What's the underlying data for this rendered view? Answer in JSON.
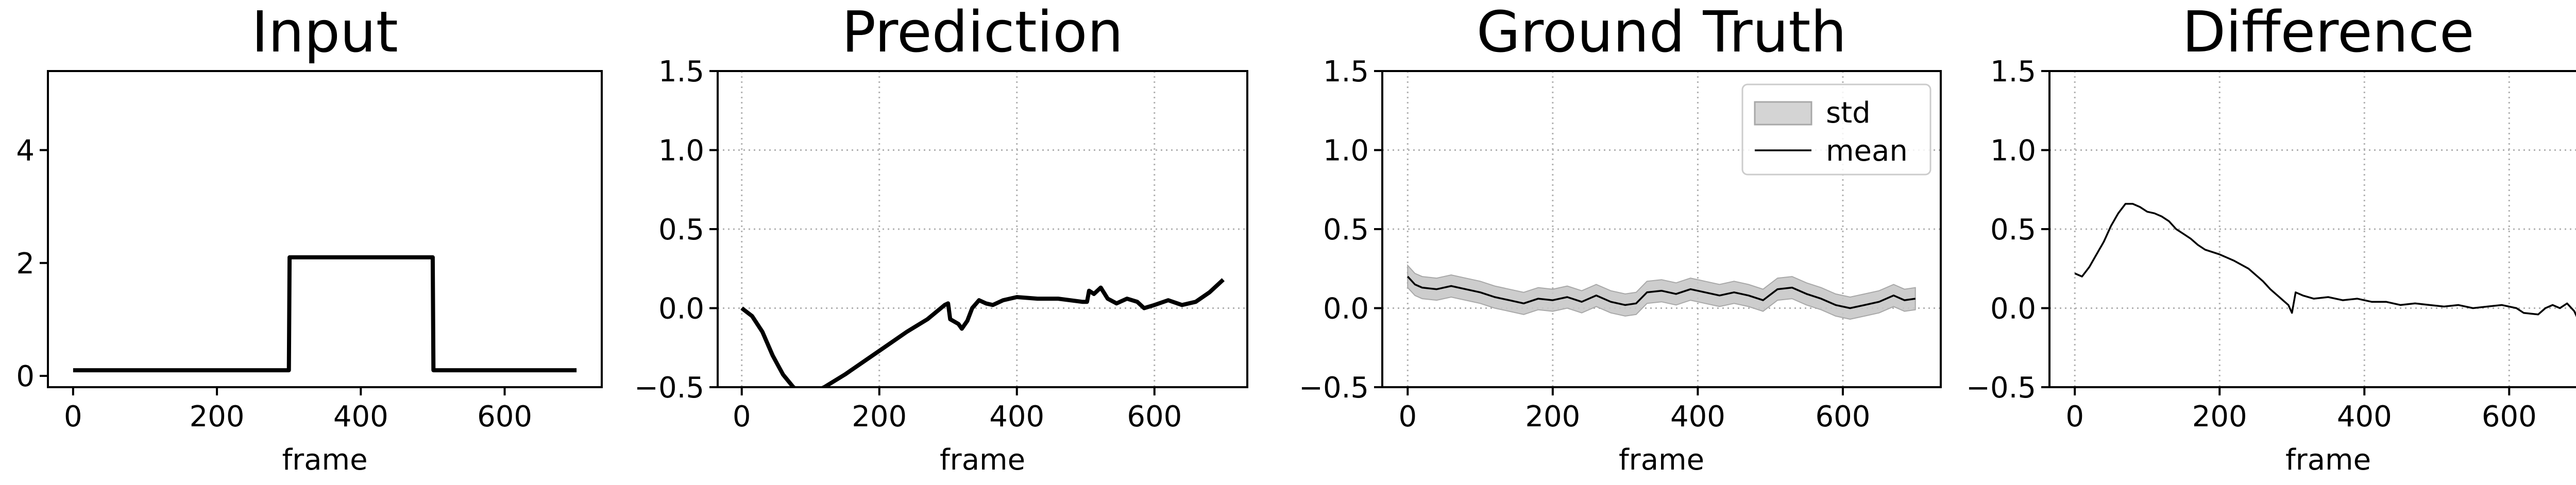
{
  "chart_data": [
    {
      "type": "line",
      "title": "Input",
      "xlabel": "frame",
      "ylabel": "",
      "xlim": [
        -35,
        735
      ],
      "ylim": [
        -0.2,
        5.4
      ],
      "xticks": [
        0,
        200,
        400,
        600
      ],
      "yticks": [
        0,
        2,
        4
      ],
      "x_tick_labels": [
        "0",
        "200",
        "400",
        "600"
      ],
      "y_tick_labels": [
        "0",
        "2",
        "4"
      ],
      "grid": false,
      "series": [
        {
          "values": [
            [
              0,
              0.1
            ],
            [
              300,
              0.1
            ],
            [
              301,
              2.1
            ],
            [
              500,
              2.1
            ],
            [
              501,
              0.1
            ],
            [
              700,
              0.1
            ]
          ],
          "color": "#000000"
        }
      ]
    },
    {
      "type": "line",
      "title": "Prediction",
      "xlabel": "frame",
      "ylabel": "",
      "xlim": [
        -35,
        735
      ],
      "ylim": [
        -0.5,
        1.5
      ],
      "xticks": [
        0,
        200,
        400,
        600
      ],
      "yticks": [
        -0.5,
        0.0,
        0.5,
        1.0,
        1.5
      ],
      "x_tick_labels": [
        "0",
        "200",
        "400",
        "600"
      ],
      "y_tick_labels": [
        "−0.5",
        "0.0",
        "0.5",
        "1.0",
        "1.5"
      ],
      "grid": true,
      "series": [
        {
          "values": [
            [
              0,
              0.0
            ],
            [
              15,
              -0.05
            ],
            [
              30,
              -0.15
            ],
            [
              45,
              -0.3
            ],
            [
              60,
              -0.42
            ],
            [
              75,
              -0.5
            ],
            [
              90,
              -0.54
            ],
            [
              105,
              -0.53
            ],
            [
              120,
              -0.5
            ],
            [
              150,
              -0.42
            ],
            [
              180,
              -0.33
            ],
            [
              210,
              -0.24
            ],
            [
              240,
              -0.15
            ],
            [
              270,
              -0.07
            ],
            [
              295,
              0.02
            ],
            [
              300,
              0.03
            ],
            [
              303,
              -0.07
            ],
            [
              315,
              -0.1
            ],
            [
              320,
              -0.13
            ],
            [
              328,
              -0.08
            ],
            [
              335,
              0.0
            ],
            [
              345,
              0.05
            ],
            [
              355,
              0.03
            ],
            [
              365,
              0.02
            ],
            [
              380,
              0.05
            ],
            [
              400,
              0.07
            ],
            [
              430,
              0.06
            ],
            [
              460,
              0.06
            ],
            [
              495,
              0.04
            ],
            [
              502,
              0.04
            ],
            [
              505,
              0.11
            ],
            [
              512,
              0.09
            ],
            [
              522,
              0.13
            ],
            [
              532,
              0.06
            ],
            [
              545,
              0.03
            ],
            [
              560,
              0.06
            ],
            [
              575,
              0.04
            ],
            [
              585,
              0.0
            ],
            [
              600,
              0.02
            ],
            [
              620,
              0.05
            ],
            [
              640,
              0.02
            ],
            [
              660,
              0.04
            ],
            [
              680,
              0.1
            ],
            [
              700,
              0.18
            ]
          ],
          "color": "#000000"
        }
      ]
    },
    {
      "type": "area",
      "title": "Ground Truth",
      "xlabel": "frame",
      "ylabel": "",
      "xlim": [
        -35,
        735
      ],
      "ylim": [
        -0.5,
        1.5
      ],
      "xticks": [
        0,
        200,
        400,
        600
      ],
      "yticks": [
        -0.5,
        0.0,
        0.5,
        1.0,
        1.5
      ],
      "x_tick_labels": [
        "0",
        "200",
        "400",
        "600"
      ],
      "y_tick_labels": [
        "−0.5",
        "0.0",
        "0.5",
        "1.0",
        "1.5"
      ],
      "grid": true,
      "legend": {
        "position": "top-right",
        "entries": [
          "std",
          "mean"
        ]
      },
      "band_halfwidth": 0.07,
      "series": [
        {
          "name": "mean",
          "values": [
            [
              0,
              0.2
            ],
            [
              10,
              0.15
            ],
            [
              20,
              0.13
            ],
            [
              40,
              0.12
            ],
            [
              60,
              0.14
            ],
            [
              80,
              0.12
            ],
            [
              100,
              0.1
            ],
            [
              120,
              0.07
            ],
            [
              140,
              0.05
            ],
            [
              160,
              0.03
            ],
            [
              180,
              0.06
            ],
            [
              200,
              0.05
            ],
            [
              220,
              0.07
            ],
            [
              240,
              0.04
            ],
            [
              260,
              0.08
            ],
            [
              280,
              0.04
            ],
            [
              300,
              0.02
            ],
            [
              315,
              0.03
            ],
            [
              330,
              0.1
            ],
            [
              350,
              0.11
            ],
            [
              370,
              0.09
            ],
            [
              390,
              0.12
            ],
            [
              410,
              0.1
            ],
            [
              430,
              0.08
            ],
            [
              450,
              0.1
            ],
            [
              470,
              0.08
            ],
            [
              490,
              0.05
            ],
            [
              510,
              0.12
            ],
            [
              530,
              0.13
            ],
            [
              550,
              0.09
            ],
            [
              570,
              0.06
            ],
            [
              590,
              0.02
            ],
            [
              610,
              0.0
            ],
            [
              630,
              0.02
            ],
            [
              650,
              0.04
            ],
            [
              670,
              0.08
            ],
            [
              685,
              0.05
            ],
            [
              700,
              0.06
            ]
          ],
          "color": "#000000",
          "band_color": "#c8c8c8"
        }
      ]
    },
    {
      "type": "line",
      "title": "Difference",
      "xlabel": "frame",
      "ylabel": "",
      "xlim": [
        -35,
        735
      ],
      "ylim": [
        -0.5,
        1.5
      ],
      "xticks": [
        0,
        200,
        400,
        600
      ],
      "yticks": [
        -0.5,
        0.0,
        0.5,
        1.0,
        1.5
      ],
      "x_tick_labels": [
        "0",
        "200",
        "400",
        "600"
      ],
      "y_tick_labels": [
        "−0.5",
        "0.0",
        "0.5",
        "1.0",
        "1.5"
      ],
      "grid": true,
      "series": [
        {
          "values": [
            [
              0,
              0.22
            ],
            [
              10,
              0.2
            ],
            [
              20,
              0.26
            ],
            [
              30,
              0.34
            ],
            [
              40,
              0.42
            ],
            [
              50,
              0.52
            ],
            [
              60,
              0.6
            ],
            [
              70,
              0.66
            ],
            [
              80,
              0.66
            ],
            [
              90,
              0.64
            ],
            [
              100,
              0.61
            ],
            [
              110,
              0.6
            ],
            [
              120,
              0.58
            ],
            [
              130,
              0.55
            ],
            [
              140,
              0.5
            ],
            [
              150,
              0.47
            ],
            [
              160,
              0.44
            ],
            [
              170,
              0.4
            ],
            [
              180,
              0.37
            ],
            [
              200,
              0.34
            ],
            [
              220,
              0.3
            ],
            [
              240,
              0.25
            ],
            [
              260,
              0.17
            ],
            [
              270,
              0.12
            ],
            [
              280,
              0.08
            ],
            [
              295,
              0.02
            ],
            [
              300,
              -0.03
            ],
            [
              305,
              0.1
            ],
            [
              315,
              0.08
            ],
            [
              330,
              0.06
            ],
            [
              350,
              0.07
            ],
            [
              370,
              0.05
            ],
            [
              390,
              0.06
            ],
            [
              410,
              0.04
            ],
            [
              430,
              0.04
            ],
            [
              450,
              0.02
            ],
            [
              470,
              0.03
            ],
            [
              490,
              0.02
            ],
            [
              510,
              0.01
            ],
            [
              530,
              0.02
            ],
            [
              550,
              0.0
            ],
            [
              570,
              0.01
            ],
            [
              590,
              0.02
            ],
            [
              610,
              0.0
            ],
            [
              620,
              -0.03
            ],
            [
              640,
              -0.04
            ],
            [
              650,
              0.0
            ],
            [
              660,
              0.02
            ],
            [
              670,
              0.0
            ],
            [
              680,
              0.03
            ],
            [
              690,
              -0.02
            ],
            [
              700,
              -0.12
            ]
          ],
          "color": "#000000"
        }
      ]
    }
  ]
}
